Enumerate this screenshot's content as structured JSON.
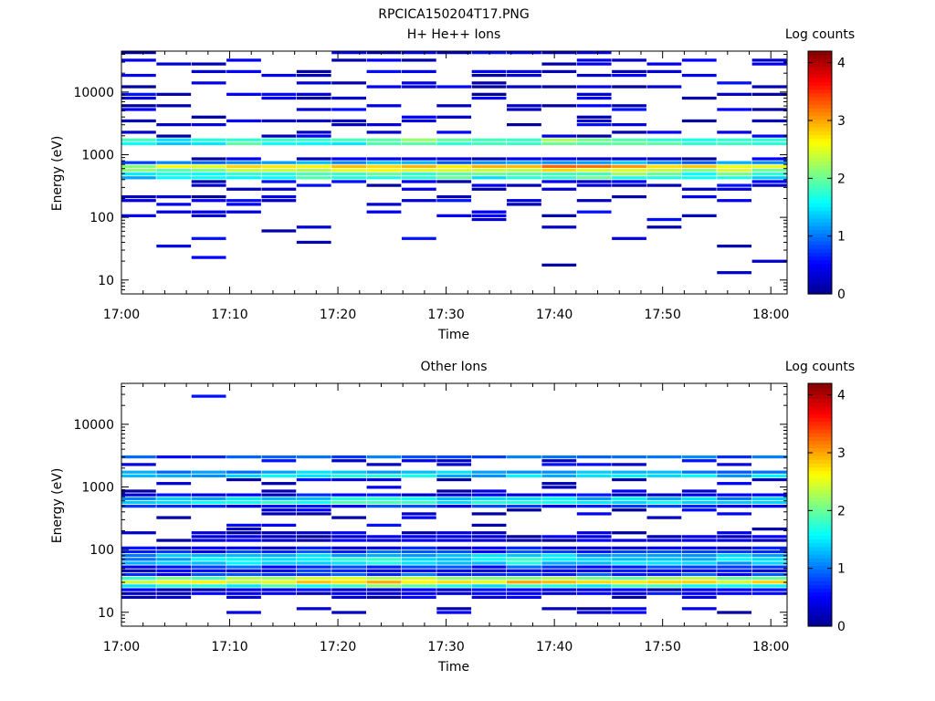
{
  "figure": {
    "title": "RPCICA150204T17.PNG"
  },
  "colormap": {
    "name": "jet",
    "stops": [
      "#00008f",
      "#0000ff",
      "#0080ff",
      "#00ffff",
      "#80ff80",
      "#ffff00",
      "#ff8000",
      "#ff0000",
      "#800000"
    ]
  },
  "chart_data": [
    {
      "type": "heatmap",
      "title": "H+ He++ Ions",
      "xlabel": "Time",
      "ylabel": "Energy (eV)",
      "x_ticks": [
        "17:00",
        "17:10",
        "17:20",
        "17:30",
        "17:40",
        "17:50",
        "18:00"
      ],
      "x_tick_minutes": [
        0,
        10,
        20,
        30,
        40,
        50,
        60
      ],
      "xlim_minutes": [
        0,
        61.5
      ],
      "y_scale": "log",
      "ylim": [
        6,
        45000
      ],
      "y_ticks": [
        "10",
        "100",
        "1000",
        "10000"
      ],
      "y_tick_values": [
        10,
        100,
        1000,
        10000
      ],
      "colorbar": {
        "label": "Log counts",
        "range": [
          0,
          4.2
        ],
        "ticks": [
          "0",
          "1",
          "2",
          "3",
          "4"
        ],
        "tick_values": [
          0,
          1,
          2,
          3,
          4
        ]
      },
      "profile": [
        [
          1700,
          1.8
        ],
        [
          1600,
          2.4
        ],
        [
          1450,
          1.8
        ],
        [
          780,
          1.3
        ],
        [
          700,
          1.9
        ],
        [
          630,
          2.8
        ],
        [
          580,
          3.3
        ],
        [
          530,
          3.1
        ],
        [
          470,
          2.2
        ],
        [
          420,
          1.6
        ]
      ],
      "sparse_bands": [
        [
          40000,
          0.45
        ],
        [
          32000,
          0.5
        ],
        [
          26000,
          0.5
        ],
        [
          21000,
          0.5
        ],
        [
          17000,
          0.45
        ],
        [
          14000,
          0.45
        ],
        [
          11500,
          0.4
        ],
        [
          9000,
          0.45
        ],
        [
          7400,
          0.45
        ],
        [
          6100,
          0.45
        ],
        [
          5000,
          0.4
        ],
        [
          4100,
          0.4
        ],
        [
          3400,
          0.45
        ],
        [
          2800,
          0.45
        ],
        [
          2300,
          0.4
        ],
        [
          1950,
          0.35
        ],
        [
          350,
          0.45
        ],
        [
          300,
          0.45
        ],
        [
          260,
          0.4
        ],
        [
          220,
          0.35
        ],
        [
          185,
          0.3
        ],
        [
          150,
          0.28
        ],
        [
          125,
          0.25
        ],
        [
          105,
          0.25
        ],
        [
          85,
          0.2
        ],
        [
          70,
          0.18
        ],
        [
          57,
          0.15
        ],
        [
          48,
          0.15
        ],
        [
          40,
          0.12
        ],
        [
          33,
          0.12
        ],
        [
          27,
          0.12
        ],
        [
          23,
          0.1
        ],
        [
          19,
          0.1
        ],
        [
          16,
          0.1
        ],
        [
          13,
          0.1
        ],
        [
          11,
          0.08
        ]
      ],
      "time_scale": [
        0.9,
        0.95,
        1.0,
        1.05,
        1.0,
        1.05,
        1.05,
        1.05,
        1.1,
        1.1,
        1.05,
        1.1,
        1.15,
        1.15,
        1.15,
        1.1,
        1.05,
        1.05,
        1.0
      ],
      "seed": 11
    },
    {
      "type": "heatmap",
      "title": "Other Ions",
      "xlabel": "Time",
      "ylabel": "Energy (eV)",
      "x_ticks": [
        "17:00",
        "17:10",
        "17:20",
        "17:30",
        "17:40",
        "17:50",
        "18:00"
      ],
      "x_tick_minutes": [
        0,
        10,
        20,
        30,
        40,
        50,
        60
      ],
      "xlim_minutes": [
        0,
        61.5
      ],
      "y_scale": "log",
      "ylim": [
        6,
        45000
      ],
      "y_ticks": [
        "10",
        "100",
        "1000",
        "10000"
      ],
      "y_tick_values": [
        10,
        100,
        1000,
        10000
      ],
      "colorbar": {
        "label": "Log counts",
        "range": [
          0,
          4.2
        ],
        "ticks": [
          "0",
          "1",
          "2",
          "3",
          "4"
        ],
        "tick_values": [
          0,
          1,
          2,
          3,
          4
        ]
      },
      "profile": [
        [
          3000,
          0.9
        ],
        [
          1700,
          1.2
        ],
        [
          1500,
          1.4
        ],
        [
          690,
          1.2
        ],
        [
          620,
          1.7
        ],
        [
          560,
          1.6
        ],
        [
          500,
          0.8
        ],
        [
          150,
          0.6
        ],
        [
          130,
          0.7
        ],
        [
          110,
          0.9
        ],
        [
          95,
          1.1
        ],
        [
          80,
          1.3
        ],
        [
          68,
          1.5
        ],
        [
          58,
          1.7
        ],
        [
          49,
          1.8
        ],
        [
          42,
          2.0
        ],
        [
          35,
          2.4
        ],
        [
          30,
          2.6
        ],
        [
          25,
          2.3
        ],
        [
          21,
          1.2
        ]
      ],
      "sparse_bands": [
        [
          27000,
          0.04
        ],
        [
          2500,
          0.3
        ],
        [
          2200,
          0.25
        ],
        [
          1300,
          0.3
        ],
        [
          1100,
          0.2
        ],
        [
          940,
          0.15
        ],
        [
          820,
          0.15
        ],
        [
          430,
          0.3
        ],
        [
          360,
          0.3
        ],
        [
          300,
          0.3
        ],
        [
          250,
          0.3
        ],
        [
          210,
          0.3
        ],
        [
          180,
          0.45
        ],
        [
          16,
          0.4
        ],
        [
          12,
          0.45
        ],
        [
          10,
          0.45
        ]
      ],
      "time_scale": [
        0.85,
        0.9,
        0.95,
        1.0,
        1.05,
        1.1,
        1.1,
        1.15,
        1.1,
        1.05,
        1.0,
        1.1,
        1.05,
        1.0,
        1.0,
        1.05,
        1.0,
        0.95,
        1.0
      ],
      "seed": 29
    }
  ]
}
